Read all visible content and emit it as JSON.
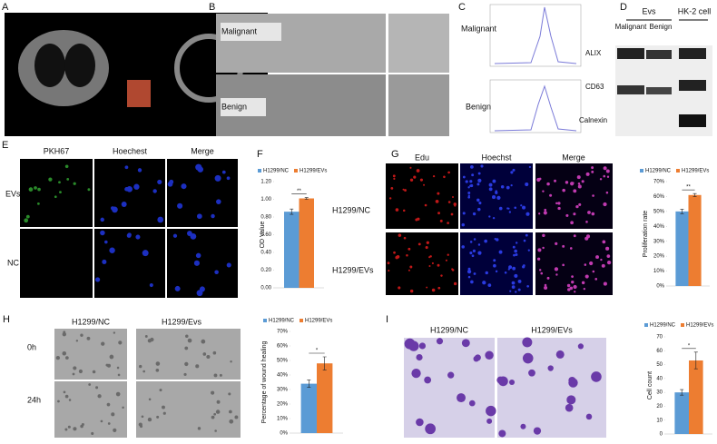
{
  "figure": {
    "panel_labels": [
      "A",
      "B",
      "C",
      "D",
      "E",
      "F",
      "G",
      "H",
      "I"
    ],
    "B": {
      "rows": [
        "Malignant",
        "Benign"
      ]
    },
    "C": {
      "rows": [
        "Malignant",
        "Benign"
      ]
    },
    "D": {
      "groups": [
        "Evs",
        "HK-2 cell"
      ],
      "lanes": [
        "Malignant",
        "Benign"
      ],
      "bands": [
        "ALIX",
        "CD63",
        "Calnexin"
      ]
    },
    "E": {
      "columns": [
        "PKH67",
        "Hoechest",
        "Merge"
      ],
      "rows": [
        "EVs",
        "NC"
      ]
    },
    "G": {
      "columns": [
        "Edu",
        "Hoechst",
        "Merge"
      ],
      "rows": [
        "H1299/NC",
        "H1299/EVs"
      ]
    },
    "H": {
      "columns": [
        "H1299/NC",
        "H1299/Evs"
      ],
      "rows": [
        "0h",
        "24h"
      ]
    },
    "I": {
      "columns": [
        "H1299/NC",
        "H1299/EVs"
      ]
    }
  },
  "chart_data": [
    {
      "type": "bar",
      "y_label": "OD Value",
      "annotation": "**",
      "series": [
        {
          "name": "H1299/NC",
          "color": "#5b9bd5",
          "values": [
            0.86
          ],
          "errors": [
            0.03
          ]
        },
        {
          "name": "H1299/EVs",
          "color": "#ed7d31",
          "values": [
            1.01
          ],
          "errors": [
            0.01
          ]
        }
      ],
      "ylim": [
        0,
        1.2
      ],
      "yticks": [
        {
          "value": 0,
          "label": "0.00"
        },
        {
          "value": 0.2,
          "label": "0.20"
        },
        {
          "value": 0.4,
          "label": "0.40"
        },
        {
          "value": 0.6,
          "label": "0.60"
        },
        {
          "value": 0.8,
          "label": "0.80"
        },
        {
          "value": 1,
          "label": "1.00"
        },
        {
          "value": 1.2,
          "label": "1.20"
        }
      ]
    },
    {
      "type": "bar",
      "y_label": "Proliferation rate",
      "annotation": "**",
      "series": [
        {
          "name": "H1299/NC",
          "color": "#5b9bd5",
          "values": [
            50
          ],
          "errors": [
            1.5
          ]
        },
        {
          "name": "H1299/EVs",
          "color": "#ed7d31",
          "values": [
            61
          ],
          "errors": [
            1
          ]
        }
      ],
      "ylim": [
        0,
        70
      ],
      "yticks": [
        {
          "value": 0,
          "label": "0%"
        },
        {
          "value": 10,
          "label": "10%"
        },
        {
          "value": 20,
          "label": "20%"
        },
        {
          "value": 30,
          "label": "30%"
        },
        {
          "value": 40,
          "label": "40%"
        },
        {
          "value": 50,
          "label": "50%"
        },
        {
          "value": 60,
          "label": "60%"
        },
        {
          "value": 70,
          "label": "70%"
        }
      ]
    },
    {
      "type": "bar",
      "y_label": "Percentage of wound healing",
      "annotation": "*",
      "series": [
        {
          "name": "H1299/NC",
          "color": "#5b9bd5",
          "values": [
            34
          ],
          "errors": [
            2.5
          ]
        },
        {
          "name": "H1299/EVs",
          "color": "#ed7d31",
          "values": [
            48
          ],
          "errors": [
            4.5
          ]
        }
      ],
      "ylim": [
        0,
        70
      ],
      "yticks": [
        {
          "value": 0,
          "label": "0%"
        },
        {
          "value": 10,
          "label": "10%"
        },
        {
          "value": 20,
          "label": "20%"
        },
        {
          "value": 30,
          "label": "30%"
        },
        {
          "value": 40,
          "label": "40%"
        },
        {
          "value": 50,
          "label": "50%"
        },
        {
          "value": 60,
          "label": "60%"
        },
        {
          "value": 70,
          "label": "70%"
        }
      ]
    },
    {
      "type": "bar",
      "y_label": "Cell count",
      "annotation": "*",
      "series": [
        {
          "name": "H1299/NC",
          "color": "#5b9bd5",
          "values": [
            30
          ],
          "errors": [
            2
          ]
        },
        {
          "name": "H1299/EVs",
          "color": "#ed7d31",
          "values": [
            53
          ],
          "errors": [
            6
          ]
        }
      ],
      "ylim": [
        0,
        70
      ],
      "yticks": [
        0,
        10,
        20,
        30,
        40,
        50,
        60,
        70
      ]
    }
  ]
}
